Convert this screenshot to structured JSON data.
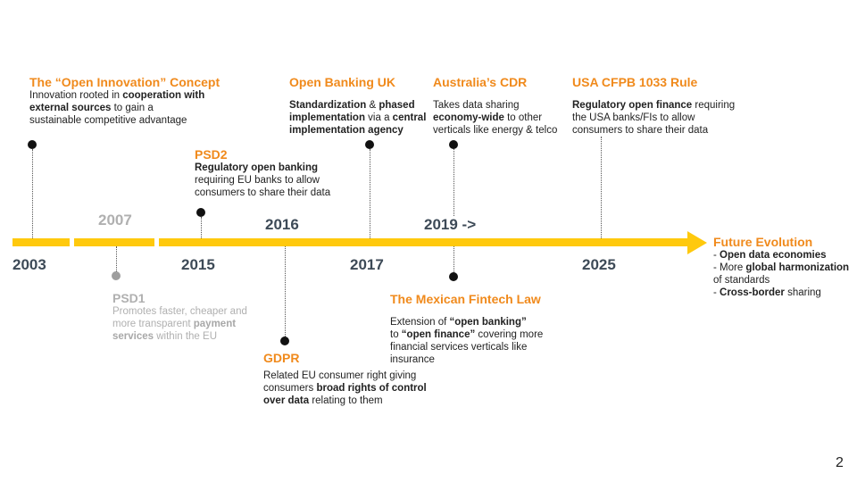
{
  "timeline": {
    "years": {
      "y2003": "2003",
      "y2007": "2007",
      "y2015": "2015",
      "y2016": "2016",
      "y2017": "2017",
      "y2019": "2019 ->",
      "y2025": "2025"
    },
    "events": {
      "open_innovation": {
        "title": "The “Open Innovation” Concept",
        "d1": "Innovation rooted in ",
        "b1": "cooperation with external sources",
        "d2": " to gain a sustainable competitive advantage"
      },
      "psd2": {
        "title": "PSD2",
        "b1": "Regulatory open banking",
        "d1": " requiring EU banks to allow consumers to share their data"
      },
      "open_banking_uk": {
        "title": "Open Banking UK",
        "b1": "Standardization",
        "d1": " & ",
        "b2": "phased implementation",
        "d2": " via a ",
        "b3": "central implementation agency"
      },
      "australia_cdr": {
        "title": "Australia’s CDR",
        "d1": "Takes data sharing ",
        "b1": "economy-wide",
        "d2": " to other verticals like energy & telco"
      },
      "usa_cfpb": {
        "title": "USA CFPB 1033 Rule",
        "b1": "Regulatory open finance",
        "d1": " requiring the USA banks/FIs to allow consumers to share their data"
      },
      "psd1": {
        "title": "PSD1",
        "d1": "Promotes faster, cheaper and more transparent ",
        "b1": "payment services",
        "d2": " within the EU"
      },
      "gdpr": {
        "title": "GDPR",
        "d1": "Related EU consumer right giving consumers ",
        "b1": "broad rights of control over data",
        "d2": " relating to them"
      },
      "mexican_fintech": {
        "title": "The Mexican Fintech Law",
        "d1": "Extension of ",
        "b1": "“open banking”",
        "d2": " to ",
        "b2": "“open finance”",
        "d3": " covering more financial services verticals like insurance"
      },
      "future": {
        "title": "Future Evolution",
        "l1_pre": "- ",
        "l1_b": "Open data economies",
        "l2_pre": "- More ",
        "l2_b": "global harmonization",
        "l2_post": " of standards",
        "l3_pre": "- ",
        "l3_b": "Cross-border",
        "l3_post": " sharing"
      }
    }
  },
  "page_number": "2",
  "colors": {
    "accent_orange": "#f08a1c",
    "timeline_yellow": "#ffc90d",
    "year_grey": "#3d4a57",
    "muted_grey": "#b0b0b0"
  }
}
